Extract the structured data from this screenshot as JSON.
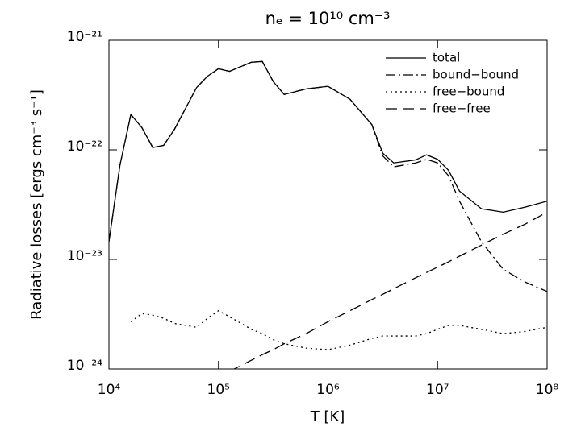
{
  "chart_data": {
    "type": "line",
    "title": "nₑ = 10¹⁰ cm⁻³",
    "xlabel": "T [K]",
    "ylabel": "Radiative losses [ergs cm⁻³ s⁻¹]",
    "xscale": "log",
    "yscale": "log",
    "xlim": [
      10000,
      100000000
    ],
    "ylim": [
      1e-24,
      1e-21
    ],
    "xticks": [
      {
        "value": 10000,
        "label": "10⁴"
      },
      {
        "value": 100000,
        "label": "10⁵"
      },
      {
        "value": 1000000,
        "label": "10⁶"
      },
      {
        "value": 10000000,
        "label": "10⁷"
      },
      {
        "value": 100000000,
        "label": "10⁸"
      }
    ],
    "yticks": [
      {
        "value": 1e-24,
        "label": "10⁻²⁴"
      },
      {
        "value": 1e-23,
        "label": "10⁻²³"
      },
      {
        "value": 1e-22,
        "label": "10⁻²²"
      },
      {
        "value": 1e-21,
        "label": "10⁻²¹"
      }
    ],
    "legend": "upper right",
    "x": [
      10000,
      12589,
      15849,
      19953,
      25119,
      31623,
      39811,
      63096,
      79433,
      100000,
      125893,
      199526,
      251189,
      316228,
      398107,
      630957,
      1000000,
      1584893,
      2511886,
      3162278,
      3981072,
      6309573,
      7943282,
      10000000,
      12589254,
      15848932,
      25118864,
      39810717,
      63095734,
      100000000
    ],
    "series": [
      {
        "name": "total",
        "color": "#000000",
        "linestyle": "solid",
        "values": [
          1.45e-23,
          7.2e-23,
          2.1e-22,
          1.6e-22,
          1.05e-22,
          1.1e-22,
          1.55e-22,
          3.7e-22,
          4.7e-22,
          5.5e-22,
          5.2e-22,
          6.3e-22,
          6.4e-22,
          4.2e-22,
          3.2e-22,
          3.6e-22,
          3.8e-22,
          2.9e-22,
          1.7e-22,
          9.3e-23,
          7.6e-23,
          8.1e-23,
          9e-23,
          8.2e-23,
          6.5e-23,
          4.2e-23,
          2.9e-23,
          2.7e-23,
          3e-23,
          3.4e-23
        ]
      },
      {
        "name": "bound−bound",
        "color": "#000000",
        "linestyle": "dashdot",
        "values": [
          1.45e-23,
          7.2e-23,
          2.1e-22,
          1.6e-22,
          1.05e-22,
          1.1e-22,
          1.55e-22,
          3.7e-22,
          4.7e-22,
          5.5e-22,
          5.2e-22,
          6.3e-22,
          6.4e-22,
          4.2e-22,
          3.2e-22,
          3.6e-22,
          3.8e-22,
          2.9e-22,
          1.7e-22,
          8.8e-23,
          7e-23,
          7.6e-23,
          8.2e-23,
          7.6e-23,
          5.8e-23,
          3.4e-23,
          1.45e-23,
          8.1e-24,
          6.2e-24,
          5.1e-24
        ]
      },
      {
        "name": "free−bound",
        "color": "#000000",
        "linestyle": "dot",
        "values": [
          null,
          null,
          2.7e-24,
          3.2e-24,
          3.1e-24,
          2.9e-24,
          2.6e-24,
          2.4e-24,
          2.9e-24,
          3.4e-24,
          3e-24,
          2.3e-24,
          2.1e-24,
          1.85e-24,
          1.7e-24,
          1.55e-24,
          1.5e-24,
          1.65e-24,
          1.9e-24,
          2e-24,
          2e-24,
          2e-24,
          2.1e-24,
          2.3e-24,
          2.5e-24,
          2.5e-24,
          2.3e-24,
          2.1e-24,
          2.2e-24,
          2.4e-24
        ]
      },
      {
        "name": "free−free",
        "color": "#000000",
        "linestyle": "dash",
        "values": [
          null,
          null,
          null,
          null,
          null,
          null,
          null,
          null,
          null,
          null,
          9.5e-25,
          1.2e-24,
          1.35e-24,
          1.5e-24,
          1.7e-24,
          2.1e-24,
          2.7e-24,
          3.4e-24,
          4.3e-24,
          4.8e-24,
          5.4e-24,
          6.8e-24,
          7.6e-24,
          8.5e-24,
          9.5e-24,
          1.07e-23,
          1.35e-23,
          1.7e-23,
          2.1e-23,
          2.7e-23
        ]
      }
    ]
  }
}
